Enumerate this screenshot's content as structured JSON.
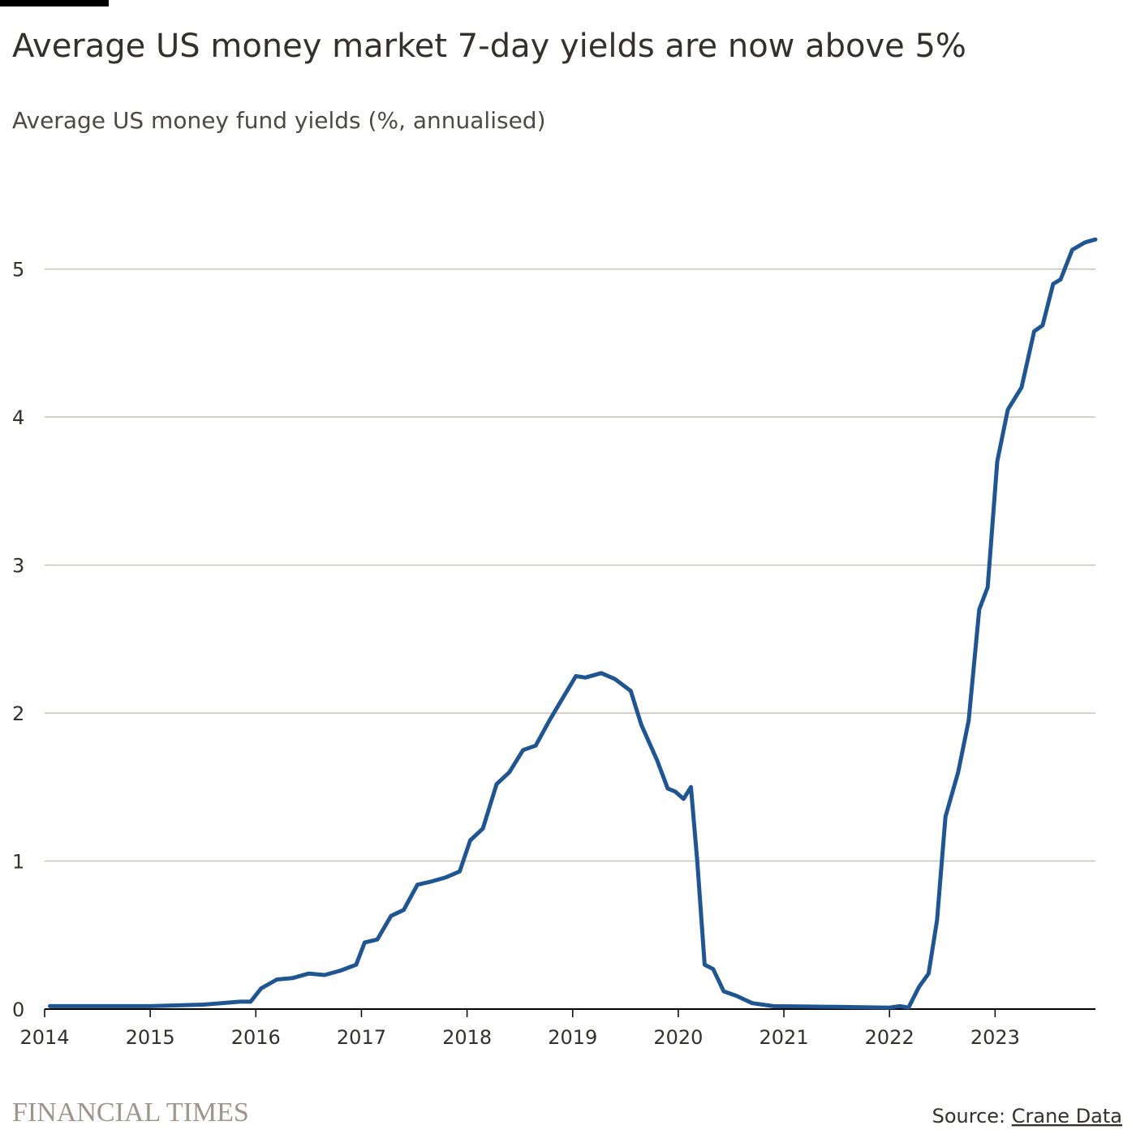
{
  "chart_data": {
    "type": "line",
    "title": "Average US money market 7-day yields are now above 5%",
    "subtitle": "Average US money fund yields (%, annualised)",
    "brand": "FINANCIAL TIMES",
    "source_label": "Source:",
    "source_name": "Crane Data",
    "xlim": [
      2014,
      2023.95
    ],
    "xticks": [
      2014,
      2015,
      2016,
      2017,
      2018,
      2019,
      2020,
      2021,
      2022,
      2023
    ],
    "ylim": [
      0,
      5.7
    ],
    "yticks": [
      0,
      1,
      2,
      3,
      4,
      5
    ],
    "grid": true,
    "series": [
      {
        "color": "#1f5591",
        "x": [
          2014.05,
          2015.0,
          2015.5,
          2015.85,
          2015.95,
          2016.05,
          2016.2,
          2016.35,
          2016.5,
          2016.65,
          2016.8,
          2016.95,
          2017.03,
          2017.15,
          2017.28,
          2017.4,
          2017.53,
          2017.65,
          2017.8,
          2017.93,
          2018.03,
          2018.15,
          2018.28,
          2018.4,
          2018.53,
          2018.65,
          2018.78,
          2018.88,
          2019.03,
          2019.12,
          2019.27,
          2019.4,
          2019.55,
          2019.65,
          2019.8,
          2019.9,
          2019.97,
          2020.05,
          2020.12,
          2020.18,
          2020.25,
          2020.33,
          2020.43,
          2020.55,
          2020.7,
          2020.9,
          2021.5,
          2022.0,
          2022.1,
          2022.18,
          2022.28,
          2022.37,
          2022.45,
          2022.53,
          2022.65,
          2022.75,
          2022.85,
          2022.93,
          2023.02,
          2023.12,
          2023.25,
          2023.37,
          2023.45,
          2023.55,
          2023.62,
          2023.73,
          2023.85,
          2023.95
        ],
        "values": [
          0.02,
          0.02,
          0.03,
          0.05,
          0.05,
          0.14,
          0.2,
          0.21,
          0.24,
          0.23,
          0.26,
          0.3,
          0.45,
          0.47,
          0.63,
          0.67,
          0.84,
          0.86,
          0.89,
          0.93,
          1.14,
          1.22,
          1.52,
          1.6,
          1.75,
          1.78,
          1.95,
          2.07,
          2.25,
          2.24,
          2.27,
          2.23,
          2.15,
          1.92,
          1.68,
          1.49,
          1.47,
          1.42,
          1.5,
          1.0,
          0.3,
          0.27,
          0.12,
          0.09,
          0.04,
          0.02,
          0.015,
          0.01,
          0.02,
          0.01,
          0.15,
          0.24,
          0.6,
          1.3,
          1.6,
          1.95,
          2.7,
          2.85,
          3.7,
          4.05,
          4.2,
          4.58,
          4.62,
          4.9,
          4.93,
          5.13,
          5.18,
          5.2
        ]
      }
    ]
  }
}
